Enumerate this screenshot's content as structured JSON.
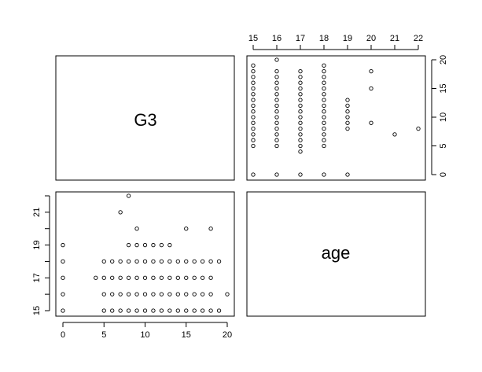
{
  "chart_data": {
    "type": "scatter",
    "title": "",
    "variables": [
      "G3",
      "age"
    ],
    "diagonal_labels": {
      "g3": "G3",
      "age": "age"
    },
    "ticks": {
      "g3": [
        "0",
        "5",
        "10",
        "15",
        "20"
      ],
      "age": [
        "15",
        "16",
        "17",
        "18",
        "19",
        "20",
        "21",
        "22"
      ],
      "age_labeled_left": [
        "15",
        "17",
        "19",
        "21"
      ]
    },
    "ranges": {
      "g3": [
        0,
        20
      ],
      "age": [
        15,
        22
      ]
    },
    "points_age_vs_g3": [
      [
        15,
        0
      ],
      [
        15,
        5
      ],
      [
        15,
        6
      ],
      [
        15,
        7
      ],
      [
        15,
        8
      ],
      [
        15,
        9
      ],
      [
        15,
        10
      ],
      [
        15,
        11
      ],
      [
        15,
        12
      ],
      [
        15,
        13
      ],
      [
        15,
        14
      ],
      [
        15,
        15
      ],
      [
        15,
        16
      ],
      [
        15,
        17
      ],
      [
        15,
        18
      ],
      [
        15,
        19
      ],
      [
        16,
        0
      ],
      [
        16,
        5
      ],
      [
        16,
        6
      ],
      [
        16,
        7
      ],
      [
        16,
        8
      ],
      [
        16,
        9
      ],
      [
        16,
        10
      ],
      [
        16,
        11
      ],
      [
        16,
        12
      ],
      [
        16,
        13
      ],
      [
        16,
        14
      ],
      [
        16,
        15
      ],
      [
        16,
        16
      ],
      [
        16,
        17
      ],
      [
        16,
        18
      ],
      [
        16,
        20
      ],
      [
        17,
        0
      ],
      [
        17,
        4
      ],
      [
        17,
        5
      ],
      [
        17,
        6
      ],
      [
        17,
        7
      ],
      [
        17,
        8
      ],
      [
        17,
        9
      ],
      [
        17,
        10
      ],
      [
        17,
        11
      ],
      [
        17,
        12
      ],
      [
        17,
        13
      ],
      [
        17,
        14
      ],
      [
        17,
        15
      ],
      [
        17,
        16
      ],
      [
        17,
        17
      ],
      [
        17,
        18
      ],
      [
        18,
        0
      ],
      [
        18,
        5
      ],
      [
        18,
        6
      ],
      [
        18,
        7
      ],
      [
        18,
        8
      ],
      [
        18,
        9
      ],
      [
        18,
        10
      ],
      [
        18,
        11
      ],
      [
        18,
        12
      ],
      [
        18,
        13
      ],
      [
        18,
        14
      ],
      [
        18,
        15
      ],
      [
        18,
        16
      ],
      [
        18,
        17
      ],
      [
        18,
        18
      ],
      [
        18,
        19
      ],
      [
        19,
        0
      ],
      [
        19,
        8
      ],
      [
        19,
        9
      ],
      [
        19,
        10
      ],
      [
        19,
        11
      ],
      [
        19,
        12
      ],
      [
        19,
        13
      ],
      [
        20,
        9
      ],
      [
        20,
        15
      ],
      [
        20,
        18
      ],
      [
        21,
        7
      ],
      [
        22,
        8
      ]
    ]
  }
}
